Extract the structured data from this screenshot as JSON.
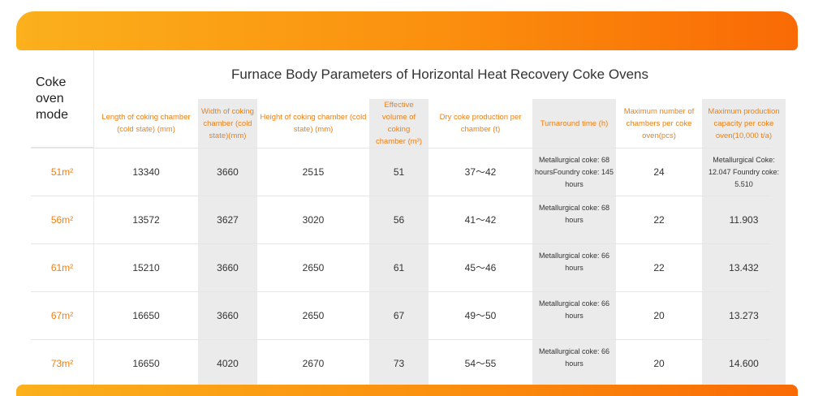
{
  "title": "Furnace Body Parameters of Horizontal Heat Recovery Coke Ovens",
  "mode_header": "Coke oven mode",
  "headers": [
    "Length of coking chamber (cold state) (mm)",
    "Width of coking chamber (cold state)(mm)",
    "Height of coking chamber (cold state) (mm)",
    "Effective volume of coking chamber (m³)",
    "Dry coke production per chamber (t)",
    "Turnaround time (h)",
    "Maximum number of chambers per coke oven(pcs)",
    "Maximum production capacity per coke oven(10,000 t/a)"
  ],
  "rows": [
    {
      "mode": "51m²",
      "length": "13340",
      "width": "3660",
      "height": "2515",
      "volume": "51",
      "production": "37～42",
      "turnaround": "Metallurgical coke: 68 hoursFoundry coke: 145 hours",
      "chambers": "24",
      "capacity": "Metallurgical Coke: 12.047 Foundry coke: 5.510"
    },
    {
      "mode": "56m²",
      "length": "13572",
      "width": "3627",
      "height": "3020",
      "volume": "56",
      "production": "41～42",
      "turnaround": "Metallurgical coke: 68 hours",
      "chambers": "22",
      "capacity": "11.903"
    },
    {
      "mode": "61m²",
      "length": "15210",
      "width": "3660",
      "height": "2650",
      "volume": "61",
      "production": "45～46",
      "turnaround": "Metallurgical coke: 66 hours",
      "chambers": "22",
      "capacity": "13.432"
    },
    {
      "mode": "67m²",
      "length": "16650",
      "width": "3660",
      "height": "2650",
      "volume": "67",
      "production": "49～50",
      "turnaround": "Metallurgical coke: 66 hours",
      "chambers": "20",
      "capacity": "13.273"
    },
    {
      "mode": "73m²",
      "length": "16650",
      "width": "4020",
      "height": "2670",
      "volume": "73",
      "production": "54～55",
      "turnaround": "Metallurgical coke: 66 hours",
      "chambers": "20",
      "capacity": "14.600"
    }
  ]
}
